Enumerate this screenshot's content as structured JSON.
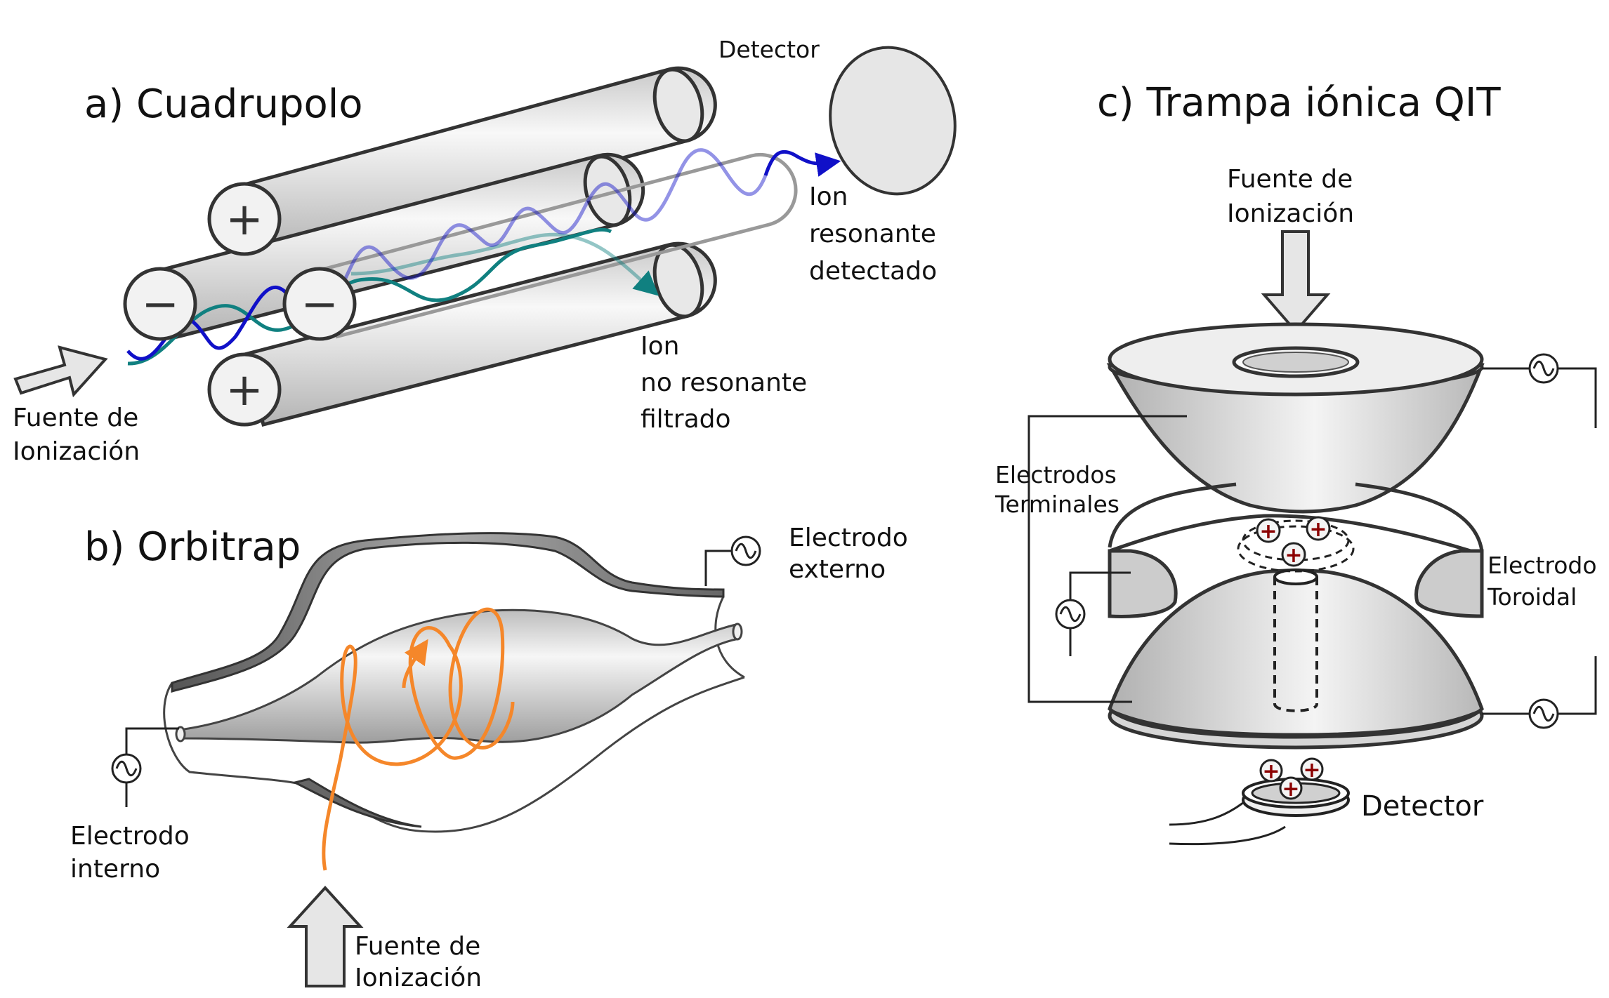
{
  "panels": {
    "quadrupole": {
      "title": "a) Cuadrupolo",
      "source_label": [
        "Fuente de",
        "Ionización"
      ],
      "detector_label": "Detector",
      "resonant_label": [
        "Ion",
        "resonante",
        "detectado"
      ],
      "nonresonant_label": [
        "Ion",
        "no resonante",
        "filtrado"
      ],
      "plus_symbol": "+",
      "minus_symbol": "−"
    },
    "orbitrap": {
      "title": "b) Orbitrap",
      "outer_electrode_label": [
        "Electrodo",
        "externo"
      ],
      "inner_electrode_label": [
        "Electrodo",
        "interno"
      ],
      "source_label": [
        "Fuente de",
        "Ionización"
      ]
    },
    "qit": {
      "title": "c) Trampa iónica QIT",
      "source_label": [
        "Fuente de",
        "Ionización"
      ],
      "end_cap_label": [
        "Electrodos",
        "Terminales"
      ],
      "ring_label": [
        "Electrodo",
        "Toroidal"
      ],
      "detector_label": "Detector",
      "ion_symbol": "+"
    }
  },
  "icons": {
    "ac_source": "ac-source-icon",
    "arrow": "block-arrow-icon"
  },
  "colors": {
    "resonant_ion": "#1010c8",
    "nonresonant_ion": "#108080",
    "orbit": "#f5872a",
    "ion_charge": "#8b0000",
    "metal_light": "#f4f4f4",
    "metal_dark": "#b8b8b8",
    "outline": "#333333"
  }
}
